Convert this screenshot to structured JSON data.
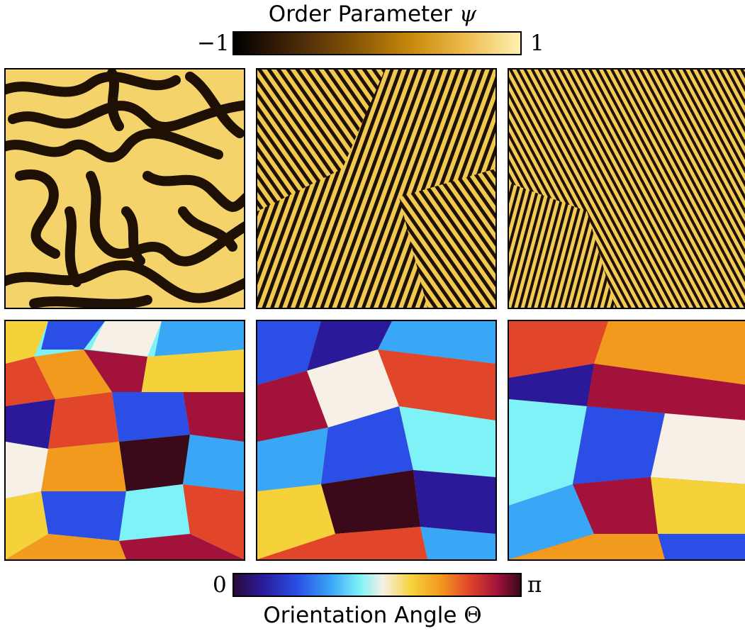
{
  "top_colorbar": {
    "label": "Order Parameter",
    "symbol": "ψ",
    "min_label": "−1",
    "max_label": "1",
    "colors": [
      "#000000",
      "#5a3508",
      "#c88a0c",
      "#fff1b0"
    ]
  },
  "bottom_colorbar": {
    "label": "Orientation Angle",
    "symbol": "Θ",
    "min_label": "0",
    "max_label": "π",
    "colors": [
      "#2a0a3a",
      "#2a4ee6",
      "#7ef2f6",
      "#f6f0e6",
      "#f6d23a",
      "#e2462a",
      "#3a0a1a"
    ]
  }
}
